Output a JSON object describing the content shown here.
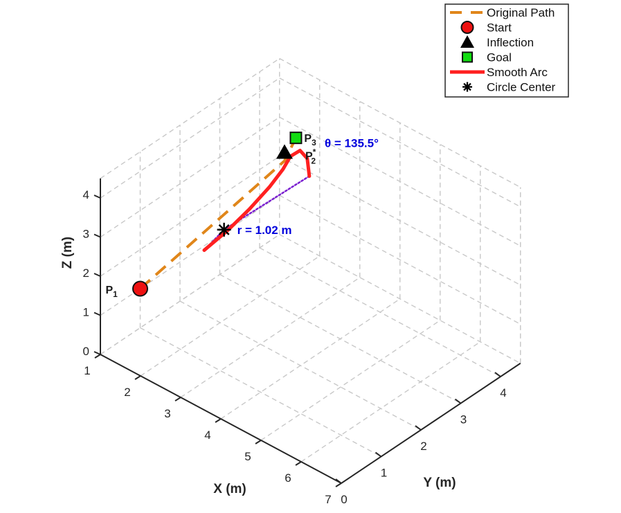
{
  "chart_data": {
    "type": "line3d",
    "xlabel": "X (m)",
    "ylabel": "Y (m)",
    "zlabel": "Z (m)",
    "xlim": [
      1,
      7
    ],
    "ylim": [
      0,
      4.5
    ],
    "zlim": [
      0,
      4.5
    ],
    "xticks": [
      "1",
      "2",
      "3",
      "4",
      "5",
      "6",
      "7"
    ],
    "yticks": [
      "0",
      "1",
      "2",
      "3",
      "4"
    ],
    "zticks": [
      "0",
      "1",
      "2",
      "3",
      "4"
    ],
    "grid": true,
    "legend_position": "top-right",
    "colors": {
      "original_path": "#e0861a",
      "start": "#ee1111",
      "inflection": "#000000",
      "goal": "#11dd11",
      "smooth_arc": "#ff2020",
      "circle_center": "#000000",
      "radius_line": "#7a1fd0",
      "annotation": "#0000dd"
    },
    "points": {
      "P1": {
        "label": "P",
        "sub": "1",
        "sup": "",
        "x": 1.0,
        "y": 1.0,
        "z": 1.0
      },
      "P2": {
        "label": "P",
        "sub": "2",
        "sup": "*",
        "x": 1.65,
        "y": 3.97,
        "z": 2.6
      },
      "P3": {
        "label": "P",
        "sub": "3",
        "sup": "",
        "x": 1.21,
        "y": 4.7,
        "z": 2.45
      },
      "center": {
        "x": 1.75,
        "y": 2.35,
        "z": 2.0
      }
    },
    "smooth_arc": [
      {
        "x": 1.9,
        "y": 1.7,
        "z": 2.0
      },
      {
        "x": 1.93,
        "y": 2.25,
        "z": 2.14
      },
      {
        "x": 1.92,
        "y": 2.81,
        "z": 2.3
      },
      {
        "x": 1.86,
        "y": 3.38,
        "z": 2.45
      },
      {
        "x": 1.77,
        "y": 3.81,
        "z": 2.56
      },
      {
        "x": 1.67,
        "y": 4.1,
        "z": 2.64
      },
      {
        "x": 1.65,
        "y": 4.36,
        "z": 2.6
      },
      {
        "x": 1.77,
        "y": 4.42,
        "z": 2.42
      },
      {
        "x": 2.01,
        "y": 4.23,
        "z": 2.23
      }
    ],
    "annotations": {
      "theta": "θ = 135.5°",
      "radius": "r = 1.02 m"
    },
    "legend": [
      {
        "key": "original_path",
        "label": "Original Path"
      },
      {
        "key": "start",
        "label": "Start"
      },
      {
        "key": "inflection",
        "label": "Inflection"
      },
      {
        "key": "goal",
        "label": "Goal"
      },
      {
        "key": "smooth_arc",
        "label": "Smooth Arc"
      },
      {
        "key": "circle_center",
        "label": "Circle Center"
      }
    ]
  }
}
